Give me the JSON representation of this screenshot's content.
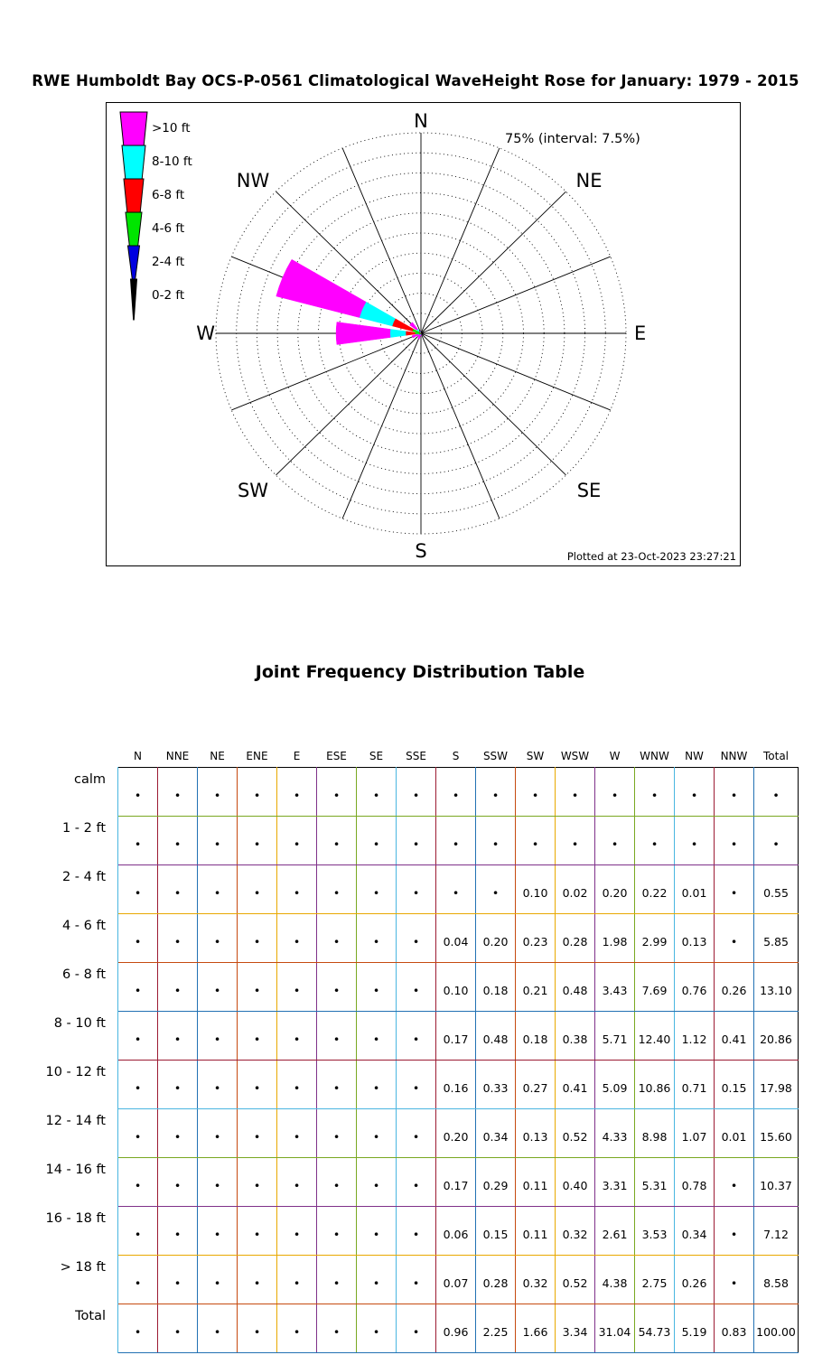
{
  "title": "RWE Humboldt Bay OCS-P-0561 Climatological WaveHeight Rose for January: 1979 - 2015",
  "rose": {
    "annotation": "75% (interval: 7.5%)",
    "footer": "Plotted at 23-Oct-2023 23:27:21",
    "compass_labels": [
      "N",
      "NE",
      "E",
      "SE",
      "S",
      "SW",
      "W",
      "NW"
    ],
    "legend": [
      {
        "label": ">10 ft",
        "color": "#ff00ff"
      },
      {
        "label": "8-10 ft",
        "color": "#00ffff"
      },
      {
        "label": "6-8 ft",
        "color": "#ff0000"
      },
      {
        "label": "4-6 ft",
        "color": "#00e500"
      },
      {
        "label": "2-4 ft",
        "color": "#0000e0"
      },
      {
        "label": "0-2 ft",
        "color": "#000000"
      }
    ]
  },
  "chart_data": {
    "type": "windrose",
    "title": "RWE Humboldt Bay OCS-P-0561 Climatological WaveHeight Rose for January: 1979 - 2015",
    "units": "percent",
    "rmax": 75,
    "ring_interval": 7.5,
    "bins": [
      "0-2 ft",
      "2-4 ft",
      "4-6 ft",
      "6-8 ft",
      "8-10 ft",
      ">10 ft"
    ],
    "bin_colors": [
      "#000000",
      "#0000e0",
      "#00e500",
      "#ff0000",
      "#00ffff",
      "#ff00ff"
    ],
    "directions": [
      "N",
      "NNE",
      "NE",
      "ENE",
      "E",
      "ESE",
      "SE",
      "SSE",
      "S",
      "SSW",
      "SW",
      "WSW",
      "W",
      "WNW",
      "NW",
      "NNW"
    ],
    "series": [
      {
        "name": "N",
        "values": [
          0,
          0,
          0,
          0,
          0,
          0
        ]
      },
      {
        "name": "NNE",
        "values": [
          0,
          0,
          0,
          0,
          0,
          0
        ]
      },
      {
        "name": "NE",
        "values": [
          0,
          0,
          0,
          0,
          0,
          0
        ]
      },
      {
        "name": "ENE",
        "values": [
          0,
          0,
          0,
          0,
          0,
          0
        ]
      },
      {
        "name": "E",
        "values": [
          0,
          0,
          0,
          0,
          0,
          0
        ]
      },
      {
        "name": "ESE",
        "values": [
          0,
          0,
          0,
          0,
          0,
          0
        ]
      },
      {
        "name": "SE",
        "values": [
          0,
          0,
          0,
          0,
          0,
          0
        ]
      },
      {
        "name": "SSE",
        "values": [
          0,
          0,
          0,
          0,
          0,
          0
        ]
      },
      {
        "name": "S",
        "values": [
          0,
          0,
          0.04,
          0.1,
          0.17,
          0.66
        ]
      },
      {
        "name": "SSW",
        "values": [
          0,
          0,
          0.2,
          0.18,
          0.48,
          1.39
        ]
      },
      {
        "name": "SW",
        "values": [
          0,
          0.1,
          0.23,
          0.21,
          0.18,
          0.94
        ]
      },
      {
        "name": "WSW",
        "values": [
          0,
          0.02,
          0.28,
          0.48,
          0.38,
          2.17
        ]
      },
      {
        "name": "W",
        "values": [
          0,
          0.2,
          1.98,
          3.43,
          5.71,
          19.72
        ]
      },
      {
        "name": "WNW",
        "values": [
          0,
          0.22,
          2.99,
          7.69,
          12.4,
          31.43
        ]
      },
      {
        "name": "NW",
        "values": [
          0,
          0.01,
          0.13,
          0.76,
          1.12,
          3.16
        ]
      },
      {
        "name": "NNW",
        "values": [
          0,
          0,
          0,
          0.26,
          0.41,
          0.16
        ]
      }
    ]
  },
  "table": {
    "title": "Joint Frequency Distribution Table",
    "empty_marker": "•",
    "columns": [
      "N",
      "NNE",
      "NE",
      "ENE",
      "E",
      "ESE",
      "SE",
      "SSE",
      "S",
      "SSW",
      "SW",
      "WSW",
      "W",
      "WNW",
      "NW",
      "NNW",
      "Total"
    ],
    "rows": [
      {
        "label": "calm",
        "values": [
          "•",
          "•",
          "•",
          "•",
          "•",
          "•",
          "•",
          "•",
          "•",
          "•",
          "•",
          "•",
          "•",
          "•",
          "•",
          "•",
          "•"
        ]
      },
      {
        "label": "1 - 2  ft",
        "values": [
          "•",
          "•",
          "•",
          "•",
          "•",
          "•",
          "•",
          "•",
          "•",
          "•",
          "•",
          "•",
          "•",
          "•",
          "•",
          "•",
          "•"
        ]
      },
      {
        "label": "2 - 4  ft",
        "values": [
          "•",
          "•",
          "•",
          "•",
          "•",
          "•",
          "•",
          "•",
          "•",
          "•",
          "0.10",
          "0.02",
          "0.20",
          "0.22",
          "0.01",
          "•",
          "0.55"
        ]
      },
      {
        "label": "4 - 6  ft",
        "values": [
          "•",
          "•",
          "•",
          "•",
          "•",
          "•",
          "•",
          "•",
          "0.04",
          "0.20",
          "0.23",
          "0.28",
          "1.98",
          "2.99",
          "0.13",
          "•",
          "5.85"
        ]
      },
      {
        "label": "6 - 8  ft",
        "values": [
          "•",
          "•",
          "•",
          "•",
          "•",
          "•",
          "•",
          "•",
          "0.10",
          "0.18",
          "0.21",
          "0.48",
          "3.43",
          "7.69",
          "0.76",
          "0.26",
          "13.10"
        ]
      },
      {
        "label": "8 - 10 ft",
        "values": [
          "•",
          "•",
          "•",
          "•",
          "•",
          "•",
          "•",
          "•",
          "0.17",
          "0.48",
          "0.18",
          "0.38",
          "5.71",
          "12.40",
          "1.12",
          "0.41",
          "20.86"
        ]
      },
      {
        "label": "10 - 12 ft",
        "values": [
          "•",
          "•",
          "•",
          "•",
          "•",
          "•",
          "•",
          "•",
          "0.16",
          "0.33",
          "0.27",
          "0.41",
          "5.09",
          "10.86",
          "0.71",
          "0.15",
          "17.98"
        ]
      },
      {
        "label": "12 - 14 ft",
        "values": [
          "•",
          "•",
          "•",
          "•",
          "•",
          "•",
          "•",
          "•",
          "0.20",
          "0.34",
          "0.13",
          "0.52",
          "4.33",
          "8.98",
          "1.07",
          "0.01",
          "15.60"
        ]
      },
      {
        "label": "14 - 16 ft",
        "values": [
          "•",
          "•",
          "•",
          "•",
          "•",
          "•",
          "•",
          "•",
          "0.17",
          "0.29",
          "0.11",
          "0.40",
          "3.31",
          "5.31",
          "0.78",
          "•",
          "10.37"
        ]
      },
      {
        "label": "16 - 18 ft",
        "values": [
          "•",
          "•",
          "•",
          "•",
          "•",
          "•",
          "•",
          "•",
          "0.06",
          "0.15",
          "0.11",
          "0.32",
          "2.61",
          "3.53",
          "0.34",
          "•",
          "7.12"
        ]
      },
      {
        "label": "> 18  ft",
        "values": [
          "•",
          "•",
          "•",
          "•",
          "•",
          "•",
          "•",
          "•",
          "0.07",
          "0.28",
          "0.32",
          "0.52",
          "4.38",
          "2.75",
          "0.26",
          "•",
          "8.58"
        ]
      },
      {
        "label": "Total",
        "values": [
          "•",
          "•",
          "•",
          "•",
          "•",
          "•",
          "•",
          "•",
          "0.96",
          "2.25",
          "1.66",
          "3.34",
          "31.04",
          "54.73",
          "5.19",
          "0.83",
          "100.00"
        ]
      }
    ],
    "grid": {
      "col_line_colors": [
        "#4ab6e0",
        "#9c1b33",
        "#2271b3",
        "#c64a10",
        "#e9a800",
        "#7f3189",
        "#79a821",
        "#4ab6e0",
        "#9c1b33",
        "#2271b3",
        "#c64a10",
        "#e9a800",
        "#7f3189",
        "#79a821",
        "#4ab6e0",
        "#9c1b33",
        "#2271b3",
        "#000000"
      ],
      "row_line_colors": [
        "#000000",
        "#79a821",
        "#7f3189",
        "#e9a800",
        "#c64a10",
        "#2271b3",
        "#9c1b33",
        "#4ab6e0",
        "#79a821",
        "#7f3189",
        "#e9a800",
        "#c64a10",
        "#2271b3"
      ]
    }
  }
}
